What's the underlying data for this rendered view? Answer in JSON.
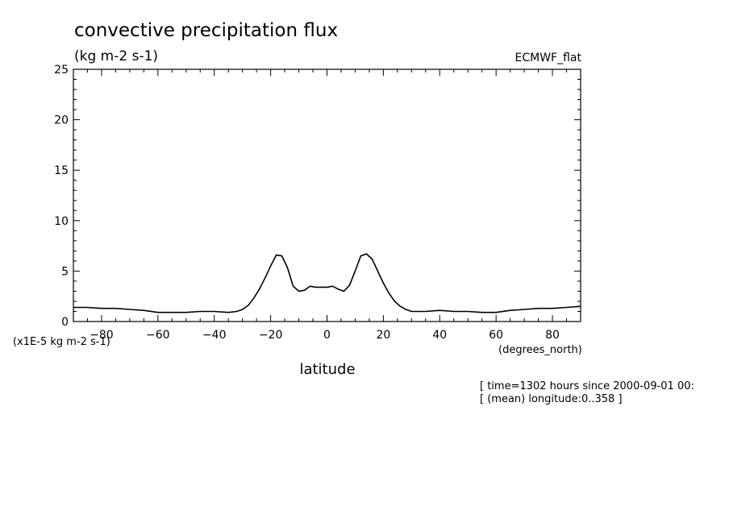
{
  "chart_data": {
    "type": "line",
    "title": "convective precipitation flux",
    "subtitle": "(kg m-2 s-1)",
    "dataset_label": "ECMWF_flat",
    "xlabel": "latitude",
    "x_units": "(degrees_north)",
    "y_scale_note": "(x1E-5 kg m-2 s-1)",
    "xlim": [
      -90,
      90
    ],
    "ylim": [
      0,
      25
    ],
    "x_ticks": [
      -80,
      -60,
      -40,
      -20,
      0,
      20,
      40,
      60,
      80
    ],
    "y_ticks": [
      0,
      5,
      10,
      15,
      20,
      25
    ],
    "grid": false,
    "series": [
      {
        "x": [
          -90,
          -85,
          -80,
          -75,
          -70,
          -65,
          -60,
          -55,
          -50,
          -45,
          -40,
          -35,
          -32,
          -30,
          -28,
          -26,
          -24,
          -22,
          -20,
          -18,
          -16,
          -14,
          -12,
          -10,
          -8,
          -6,
          -4,
          -2,
          0,
          2,
          4,
          6,
          8,
          10,
          12,
          14,
          16,
          18,
          20,
          22,
          24,
          26,
          28,
          30,
          35,
          40,
          45,
          50,
          55,
          60,
          65,
          70,
          75,
          80,
          85,
          90
        ],
        "y": [
          1.4,
          1.4,
          1.3,
          1.3,
          1.2,
          1.1,
          0.9,
          0.9,
          0.9,
          1.0,
          1.0,
          0.9,
          1.0,
          1.2,
          1.6,
          2.3,
          3.2,
          4.3,
          5.5,
          6.6,
          6.5,
          5.3,
          3.5,
          3.0,
          3.1,
          3.5,
          3.4,
          3.4,
          3.4,
          3.5,
          3.2,
          3.0,
          3.6,
          5.0,
          6.5,
          6.7,
          6.2,
          5.0,
          3.8,
          2.8,
          2.0,
          1.5,
          1.2,
          1.0,
          1.0,
          1.1,
          1.0,
          1.0,
          0.9,
          0.9,
          1.1,
          1.2,
          1.3,
          1.3,
          1.4,
          1.5
        ]
      }
    ],
    "footer": [
      "[ time=1302 hours since 2000-09-01 00:",
      "[ (mean) longitude:0..358 ]"
    ]
  }
}
